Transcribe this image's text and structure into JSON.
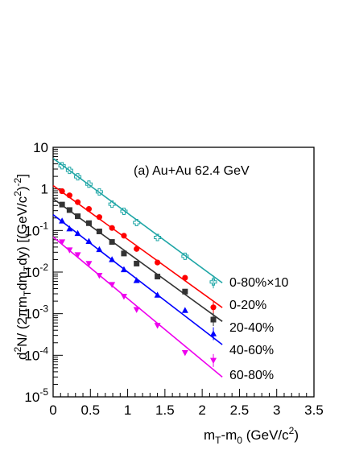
{
  "chart_data": {
    "type": "scatter",
    "title": "",
    "annotation": "(a) Au+Au 62.4 GeV",
    "xlabel": {
      "base": "m",
      "sub1": "T",
      "mid": "-m",
      "sub2": "0",
      "tail": " (GeV/c",
      "sup": "2",
      "end": ")"
    },
    "ylabel": {
      "p1": "d",
      "sup1": "2",
      "p2": "N/ (2πm",
      "sub1": "T",
      "p3": "dm",
      "sub2": "T",
      "p4": "dy) [(GeV/c",
      "sup2": "2",
      "p5": ")",
      "sup3": "-2",
      "p6": "]"
    },
    "xlim": [
      0,
      3.5
    ],
    "ylim": [
      1e-05,
      10
    ],
    "yscale": "log",
    "grid": false,
    "x_ticks": [
      "0",
      "0.5",
      "1",
      "1.5",
      "2",
      "2.5",
      "3",
      "3.5"
    ],
    "y_ticks": [
      {
        "base": "10",
        "exp": "-5"
      },
      {
        "base": "10",
        "exp": "-4"
      },
      {
        "base": "10",
        "exp": "-3"
      },
      {
        "base": "10",
        "exp": "-2"
      },
      {
        "base": "10",
        "exp": "-1"
      },
      {
        "base": "1",
        "exp": ""
      },
      {
        "base": "10",
        "exp": ""
      }
    ],
    "colors": {
      "cyan": "#1fa6a6",
      "red": "#ff0000",
      "black": "#333333",
      "blue": "#0000ff",
      "magenta": "#ee00ee"
    },
    "series": [
      {
        "name": "0-80%×10",
        "marker": "open-cross",
        "color": "#1fa6a6",
        "x": [
          0.12,
          0.22,
          0.33,
          0.48,
          0.62,
          0.79,
          0.95,
          1.12,
          1.4,
          1.77,
          2.15
        ],
        "y": [
          3.6,
          2.8,
          1.95,
          1.3,
          0.85,
          0.43,
          0.29,
          0.155,
          0.068,
          0.024,
          0.0058
        ],
        "fit": {
          "x0": 0.0,
          "y0": 5.4,
          "x1": 2.27,
          "y1": 0.0055
        }
      },
      {
        "name": "0-20%",
        "marker": "filled-circle",
        "color": "#ff0000",
        "x": [
          0.12,
          0.22,
          0.33,
          0.48,
          0.62,
          0.79,
          0.95,
          1.12,
          1.4,
          1.77,
          2.15
        ],
        "y": [
          0.88,
          0.7,
          0.48,
          0.33,
          0.21,
          0.115,
          0.075,
          0.036,
          0.017,
          0.0073,
          0.00142
        ],
        "fit": {
          "x0": 0.0,
          "y0": 1.2,
          "x1": 2.27,
          "y1": 0.0014
        }
      },
      {
        "name": "20-40%",
        "marker": "filled-square",
        "color": "#333333",
        "x": [
          0.12,
          0.22,
          0.33,
          0.48,
          0.62,
          0.79,
          0.95,
          1.12,
          1.4,
          1.77,
          2.15
        ],
        "y": [
          0.42,
          0.31,
          0.22,
          0.15,
          0.095,
          0.053,
          0.028,
          0.016,
          0.0078,
          0.0034,
          0.00072
        ],
        "fit": {
          "x0": 0.0,
          "y0": 0.58,
          "x1": 2.27,
          "y1": 0.00065
        }
      },
      {
        "name": "40-60%",
        "marker": "filled-triangle-up",
        "color": "#0000ff",
        "x": [
          0.12,
          0.22,
          0.33,
          0.48,
          0.62,
          0.79,
          0.95,
          1.12,
          1.4,
          1.77,
          2.15
        ],
        "y": [
          0.17,
          0.11,
          0.085,
          0.055,
          0.035,
          0.02,
          0.0115,
          0.0063,
          0.0028,
          0.0012,
          0.00033
        ],
        "fit": {
          "x0": 0.0,
          "y0": 0.24,
          "x1": 2.27,
          "y1": 0.00018
        }
      },
      {
        "name": "60-80%",
        "marker": "filled-triangle-down",
        "color": "#ee00ee",
        "x": [
          0.12,
          0.22,
          0.33,
          0.48,
          0.62,
          0.79,
          0.95,
          1.12,
          1.4,
          1.77,
          2.15
        ],
        "y": [
          0.053,
          0.034,
          0.026,
          0.016,
          0.0083,
          0.005,
          0.0026,
          0.00125,
          0.00052,
          0.000115,
          7.5e-05
        ],
        "fit": {
          "x0": 0.0,
          "y0": 0.07,
          "x1": 2.27,
          "y1": 3e-05
        }
      }
    ]
  }
}
